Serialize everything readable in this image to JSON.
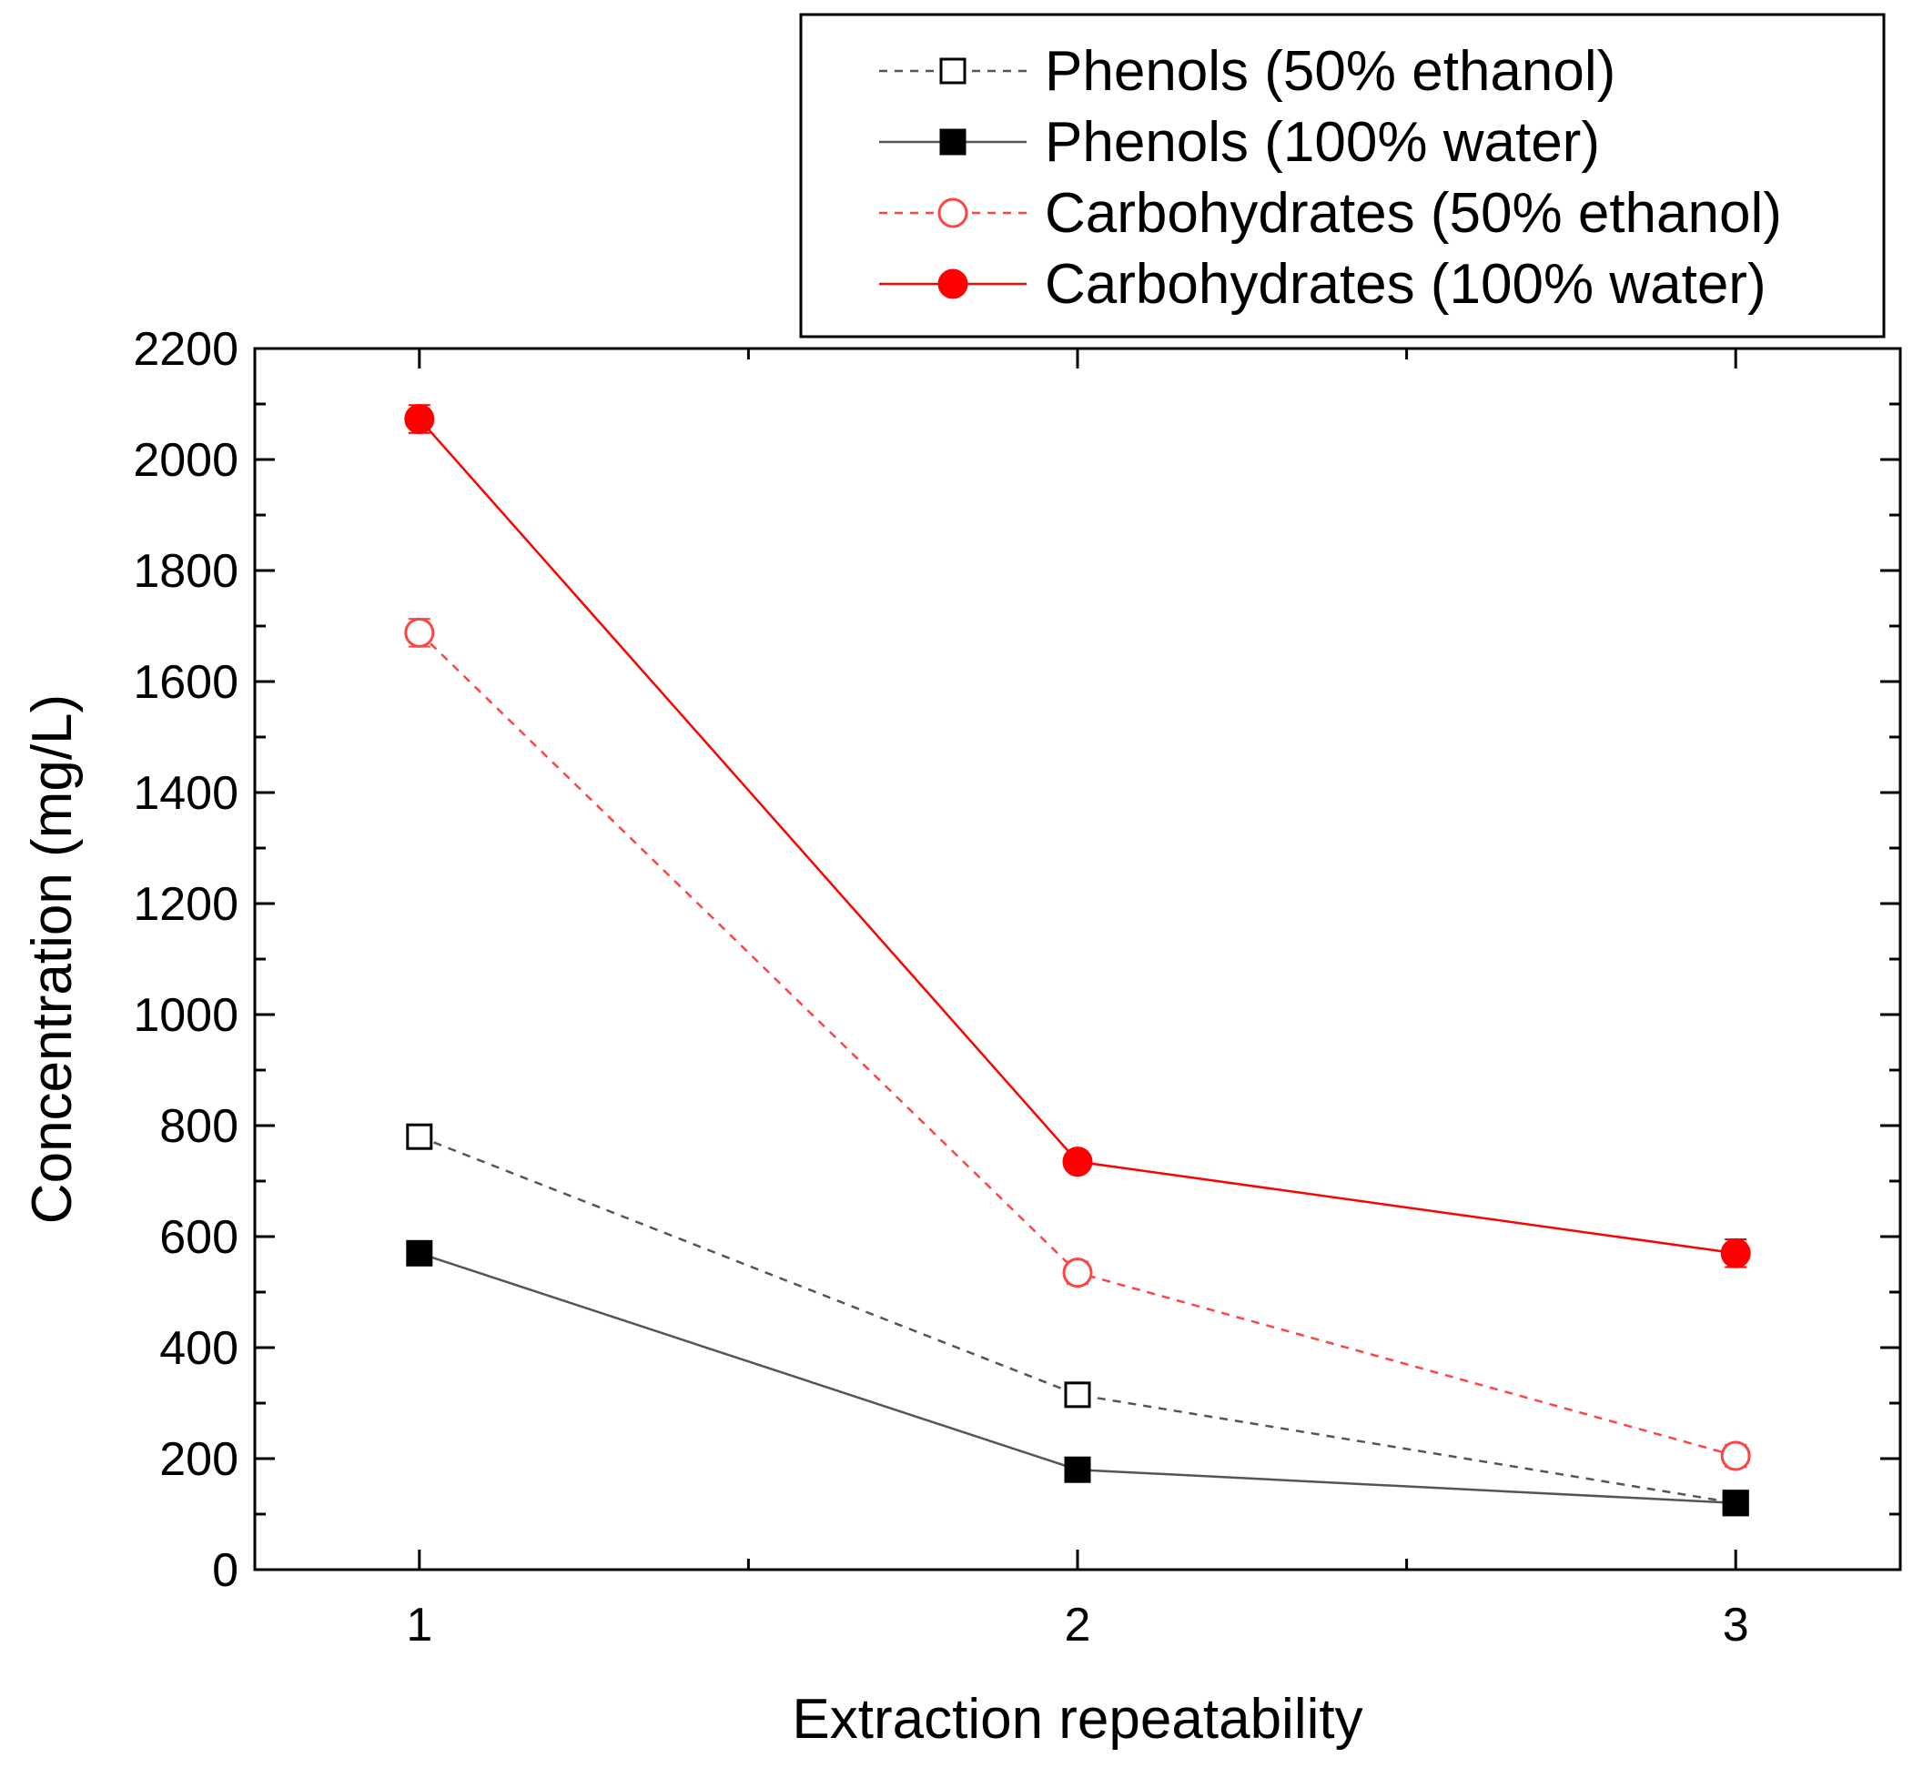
{
  "chart_data": {
    "type": "line",
    "title": "",
    "xlabel": "Extraction repeatability",
    "ylabel": "Concentration (mg/L)",
    "x": [
      1,
      2,
      3
    ],
    "xticks": [
      "1",
      "2",
      "3"
    ],
    "xlim": [
      0.75,
      3.25
    ],
    "ylim": [
      0,
      2200
    ],
    "yticks": [
      "0",
      "200",
      "400",
      "600",
      "800",
      "1000",
      "1200",
      "1400",
      "1600",
      "1800",
      "2000",
      "2200"
    ],
    "grid": false,
    "legend_position": "top-right",
    "series": [
      {
        "name": "Phenols (50% ethanol)",
        "values": [
          780,
          315,
          120
        ],
        "errors": [
          20,
          20,
          10
        ],
        "color": "#555555",
        "dash": true,
        "marker": "square-open"
      },
      {
        "name": "Phenols (100% water)",
        "values": [
          570,
          180,
          120
        ],
        "errors": [
          10,
          10,
          10
        ],
        "color": "#555555",
        "dash": false,
        "marker": "square-filled"
      },
      {
        "name": "Carbohydrates (50% ethanol)",
        "values": [
          1688,
          535,
          205
        ],
        "errors": [
          25,
          20,
          20
        ],
        "color": "#ff4444",
        "dash": true,
        "marker": "circle-open"
      },
      {
        "name": "Carbohydrates (100% water)",
        "values": [
          2073,
          735,
          570
        ],
        "errors": [
          25,
          15,
          25
        ],
        "color": "#ff0000",
        "dash": false,
        "marker": "circle-filled"
      }
    ]
  }
}
